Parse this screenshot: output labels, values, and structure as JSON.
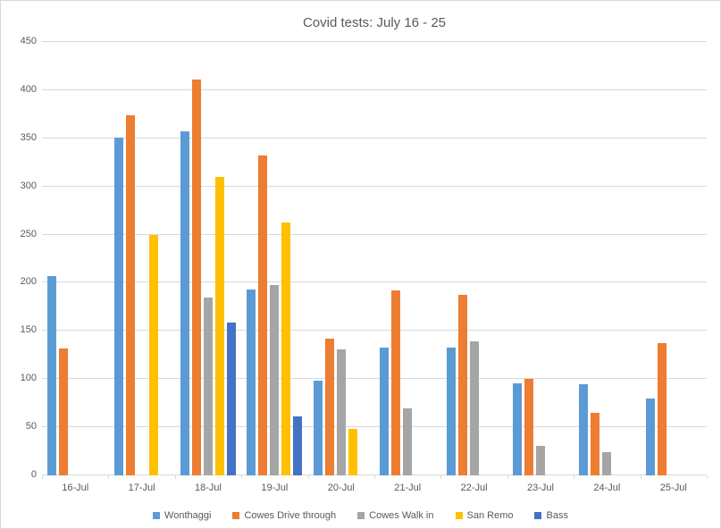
{
  "chart_data": {
    "type": "bar",
    "title": "Covid tests: July 16 - 25",
    "categories": [
      "16-Jul",
      "17-Jul",
      "18-Jul",
      "19-Jul",
      "20-Jul",
      "21-Jul",
      "22-Jul",
      "23-Jul",
      "24-Jul",
      "25-Jul"
    ],
    "series": [
      {
        "name": "Wonthaggi",
        "color": "#5B9BD5",
        "values": [
          207,
          351,
          357,
          193,
          98,
          133,
          133,
          96,
          95,
          80
        ]
      },
      {
        "name": "Cowes Drive through",
        "color": "#ED7D31",
        "values": [
          132,
          374,
          411,
          332,
          142,
          192,
          187,
          100,
          65,
          137
        ]
      },
      {
        "name": "Cowes Walk in",
        "color": "#A5A5A5",
        "values": [
          null,
          null,
          185,
          198,
          131,
          70,
          139,
          31,
          24,
          null
        ]
      },
      {
        "name": "San Remo",
        "color": "#FFC000",
        "values": [
          null,
          250,
          310,
          263,
          48,
          null,
          null,
          null,
          null,
          null
        ]
      },
      {
        "name": "Bass",
        "color": "#4472C4",
        "values": [
          null,
          null,
          159,
          61,
          null,
          null,
          null,
          null,
          null,
          null
        ]
      }
    ],
    "ylim": [
      0,
      450
    ],
    "yticks": [
      0,
      50,
      100,
      150,
      200,
      250,
      300,
      350,
      400,
      450
    ],
    "grid": true,
    "legend_position": "bottom",
    "ui_colors": {
      "gridline": "#D9D9D9",
      "axis_text": "#595959",
      "title_text": "#595959",
      "border": "#D9D9D9",
      "background": "#FFFFFF"
    }
  }
}
